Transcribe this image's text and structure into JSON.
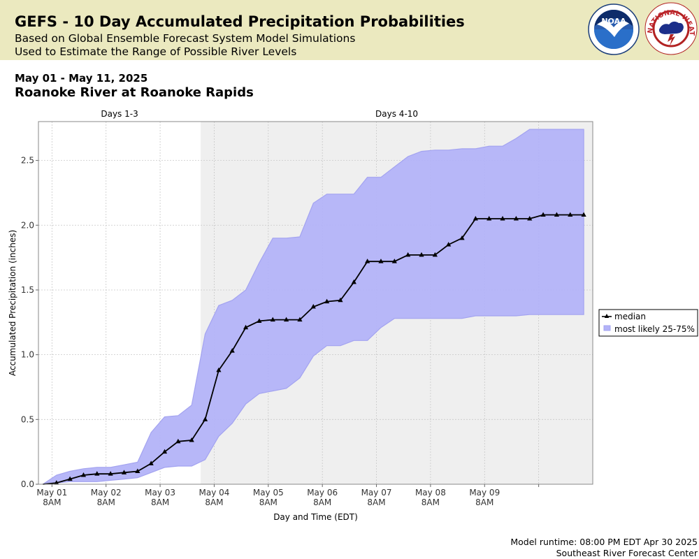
{
  "header": {
    "title": "GEFS - 10 Day Accumulated Precipitation Probabilities",
    "subtitle_1": "Based on Global Ensemble Forecast System Model Simulations",
    "subtitle_2": "Used to Estimate the Range of Possible River Levels",
    "noaa_logo_text": "NOAA",
    "nws_logo_text": "NATIONAL WEATHER SERVICE"
  },
  "date_range": "May 01 - May 11, 2025",
  "location": "Roanoke River at Roanoke Rapids",
  "footer": {
    "runtime": "Model runtime: 08:00 PM EDT Apr 30 2025",
    "center": "Southeast River Forecast Center"
  },
  "colors": {
    "header_bg": "#ebe9bf",
    "band_fill": "#b3b3f8",
    "band_edge": "#a3a3f0",
    "median_line": "#000000",
    "shade_days_4_10": "#efefef"
  },
  "chart_data": {
    "type": "area",
    "xlabel": "Day and Time (EDT)",
    "ylabel": "Accumulated Precipitation (inches)",
    "ylim": [
      0,
      2.8
    ],
    "y_ticks": [
      "0.0",
      "0.5",
      "1.0",
      "1.5",
      "2.0",
      "2.5"
    ],
    "x_ticks": [
      {
        "date": "May 01",
        "time": "8AM"
      },
      {
        "date": "May 02",
        "time": "8AM"
      },
      {
        "date": "May 03",
        "time": "8AM"
      },
      {
        "date": "May 04",
        "time": "8AM"
      },
      {
        "date": "May 05",
        "time": "8AM"
      },
      {
        "date": "May 06",
        "time": "8AM"
      },
      {
        "date": "May 07",
        "time": "8AM"
      },
      {
        "date": "May 08",
        "time": "8AM"
      },
      {
        "date": "May 09",
        "time": "8AM"
      }
    ],
    "period_labels": [
      "Days 1-3",
      "Days 4-10"
    ],
    "grid": true,
    "legend_position": "right",
    "x_hours_since_start": [
      2,
      8,
      14,
      20,
      26,
      32,
      38,
      44,
      50,
      56,
      62,
      68,
      74,
      80,
      86,
      92,
      98,
      104,
      110,
      116,
      122,
      128,
      134,
      140,
      146,
      152,
      158,
      164,
      170,
      176,
      182,
      188,
      194,
      200,
      206,
      212,
      218,
      224,
      230,
      236
    ],
    "series": [
      {
        "name": "median",
        "values": [
          0.01,
          0.04,
          0.07,
          0.08,
          0.08,
          0.09,
          0.1,
          0.16,
          0.25,
          0.33,
          0.34,
          0.5,
          0.88,
          1.03,
          1.21,
          1.26,
          1.27,
          1.27,
          1.27,
          1.37,
          1.41,
          1.42,
          1.56,
          1.72,
          1.72,
          1.72,
          1.77,
          1.77,
          1.77,
          1.85,
          1.9,
          2.05,
          2.05,
          2.05,
          2.05,
          2.05,
          2.08,
          2.08,
          2.08,
          2.08
        ]
      },
      {
        "name": "most likely 25-75%",
        "x_hours_since_start": [
          -4,
          2,
          8,
          14,
          20,
          26,
          32,
          38,
          44,
          50,
          56,
          62,
          68,
          74,
          80,
          86,
          92,
          98,
          104,
          110,
          116,
          122,
          128,
          134,
          140,
          146,
          152,
          158,
          164,
          170,
          176,
          182,
          188,
          194,
          200,
          206,
          212,
          218,
          224,
          230,
          236
        ],
        "low": [
          0,
          0.01,
          0.02,
          0.02,
          0.02,
          0.03,
          0.04,
          0.05,
          0.09,
          0.13,
          0.14,
          0.14,
          0.19,
          0.37,
          0.47,
          0.62,
          0.7,
          0.72,
          0.74,
          0.82,
          0.99,
          1.07,
          1.07,
          1.11,
          1.11,
          1.21,
          1.28,
          1.28,
          1.28,
          1.28,
          1.28,
          1.28,
          1.3,
          1.3,
          1.3,
          1.3,
          1.31,
          1.31,
          1.31,
          1.31,
          1.31
        ],
        "high": [
          0,
          0.07,
          0.1,
          0.12,
          0.13,
          0.13,
          0.15,
          0.17,
          0.4,
          0.52,
          0.53,
          0.61,
          1.16,
          1.38,
          1.42,
          1.5,
          1.71,
          1.9,
          1.9,
          1.91,
          2.17,
          2.24,
          2.24,
          2.24,
          2.37,
          2.37,
          2.45,
          2.53,
          2.57,
          2.58,
          2.58,
          2.59,
          2.59,
          2.61,
          2.61,
          2.67,
          2.74,
          2.74,
          2.74,
          2.74,
          2.74
        ]
      }
    ]
  }
}
